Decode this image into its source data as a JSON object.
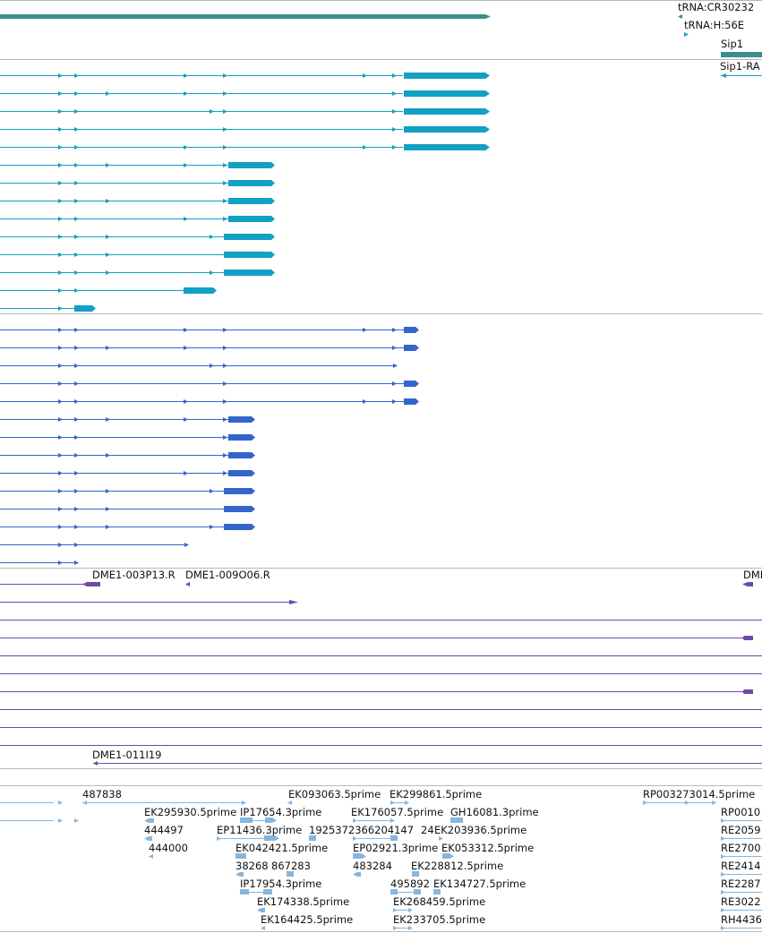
{
  "colors": {
    "gene_track": "#3a8f8c",
    "mrna_track": "#12a0c4",
    "protein_track": "#3366cc",
    "oligo_track": "#6c4aa8",
    "est_track": "#86b6de",
    "divider": "#b8b8b8",
    "label": "#111111"
  },
  "top_labels": {
    "trna_cr30232": "tRNA:CR30232",
    "trna_h56e": "tRNA:H:56E",
    "gene_sip1": "Sip1",
    "transcript_sip1_ra": "Sip1-RA"
  },
  "oligo_labels": {
    "dme1_003p13": "DME1-003P13.R",
    "dme1_009o06": "DME1-009O06.R",
    "dme1_truncated": "DME",
    "dme1_011i19": "DME1-011I19"
  },
  "est_labels": [
    "487838",
    "EK093063.5prime",
    "EK299861.5prime",
    "RP003273014.5prime",
    "EK295930.5prime",
    "IP17654.3prime",
    "EK176057.5prime",
    "GH16081.3prime",
    "RP0010",
    "444497",
    "EP11436.3prime",
    "1925372366204147",
    "24",
    "EK203936.5prime",
    "RE2059",
    "444000",
    "EK042421.5prime",
    "EP02921.3prime",
    "EK053312.5prime",
    "RE2700",
    "38268",
    "867283",
    "483284",
    "EK228812.5prime",
    "RE2414",
    "IP17954.3prime",
    "495892",
    "EK134727.5prime",
    "RE2287",
    "EK174338.5prime",
    "EK268459.5prime",
    "RE3022",
    "EK164425.5prime",
    "EK233705.5prime",
    "RH4436"
  ]
}
